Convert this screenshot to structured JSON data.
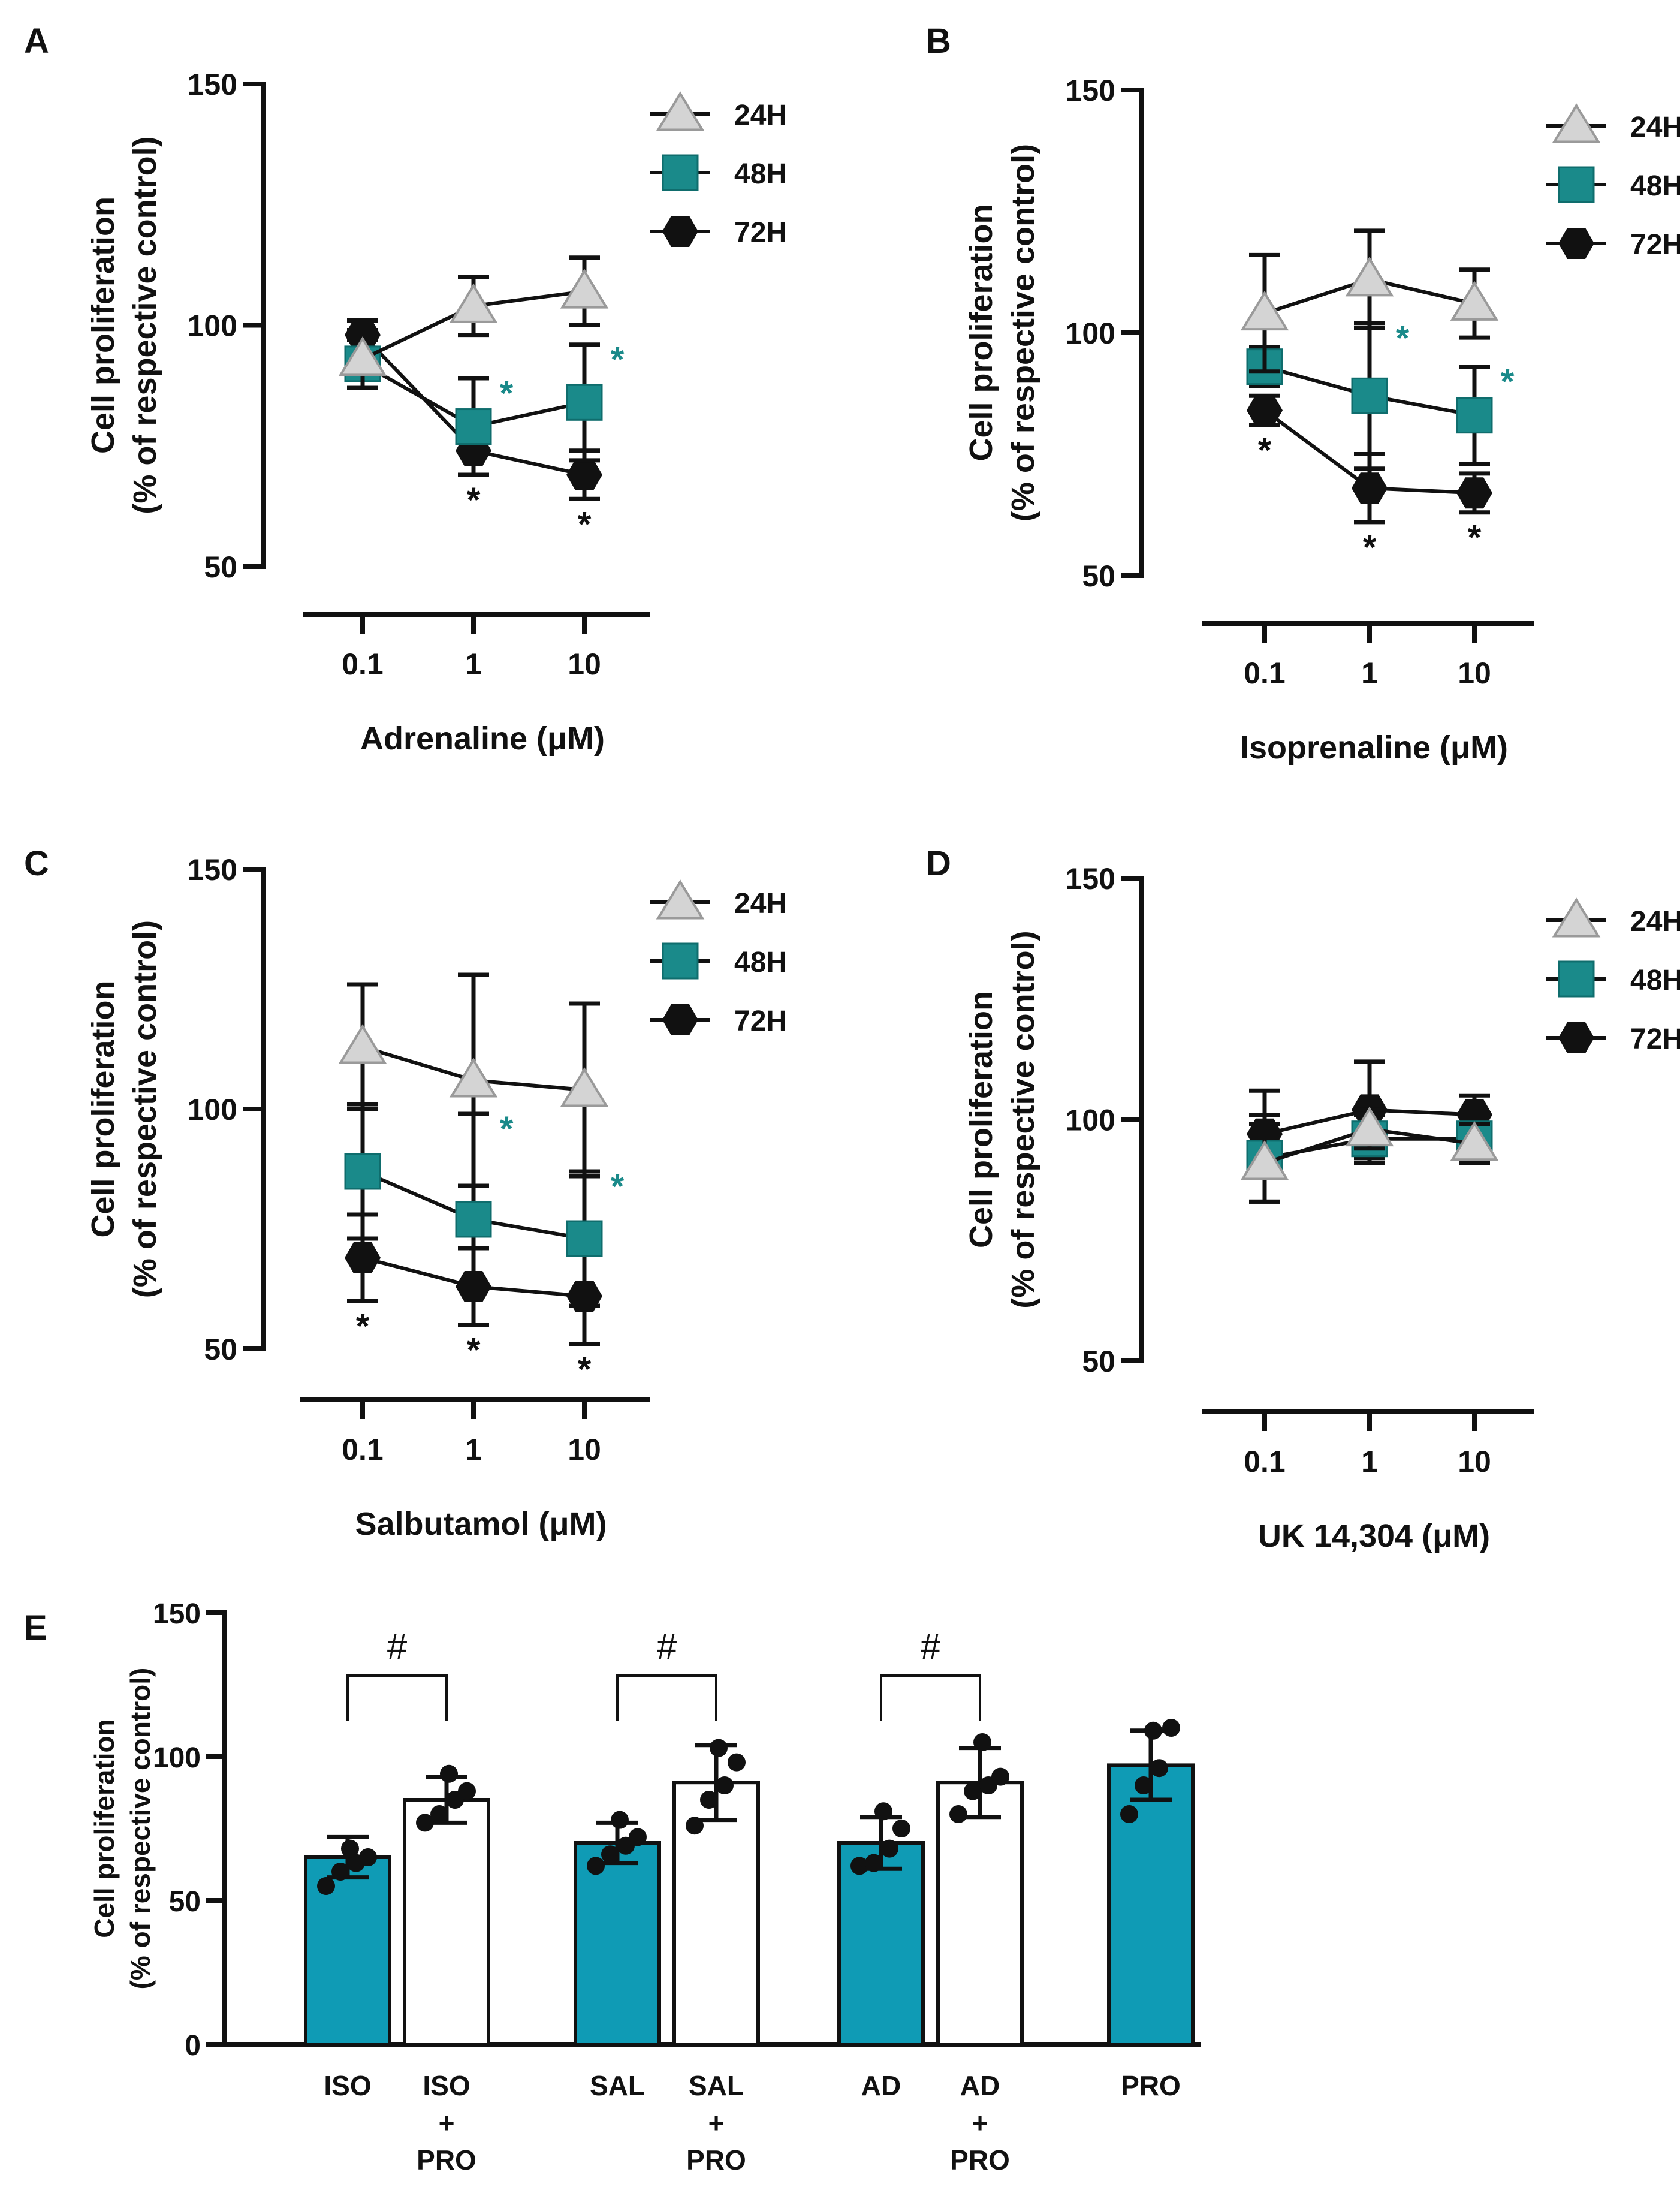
{
  "figure": {
    "legend_labels": [
      "24H",
      "48H",
      "72H"
    ],
    "colors": {
      "h24_fill": "#d4d4d4",
      "h24_stroke": "#9a9a9a",
      "h48": "#1a8a8a",
      "h72": "#111111",
      "bar_fill": "#0f9bb5",
      "axis": "#111111"
    }
  },
  "chart_data": [
    {
      "panel": "A",
      "type": "line",
      "xlabel": "Adrenaline (μM)",
      "ylabel_line1": "Cell proliferation",
      "ylabel_line2": "(% of respective control)",
      "ylim": [
        50,
        150
      ],
      "yticks": [
        "50",
        "100",
        "150"
      ],
      "categories": [
        "0.1",
        "1",
        "10"
      ],
      "series": [
        {
          "name": "24H",
          "values": [
            93,
            104,
            107
          ],
          "err": [
            6,
            6,
            7
          ],
          "stars": [
            "",
            "",
            ""
          ]
        },
        {
          "name": "48H",
          "values": [
            92,
            79,
            84
          ],
          "err": [
            5,
            10,
            12
          ],
          "stars": [
            "",
            "*",
            "*"
          ]
        },
        {
          "name": "72H",
          "values": [
            98,
            74,
            69
          ],
          "err": [
            3,
            5,
            5
          ],
          "stars": [
            "",
            "*",
            "*"
          ]
        }
      ]
    },
    {
      "panel": "B",
      "type": "line",
      "xlabel": "Isoprenaline (μM)",
      "ylabel_line1": "Cell proliferation",
      "ylabel_line2": "(% of respective control)",
      "ylim": [
        50,
        150
      ],
      "yticks": [
        "50",
        "100",
        "150"
      ],
      "categories": [
        "0.1",
        "1",
        "10"
      ],
      "series": [
        {
          "name": "24H",
          "values": [
            104,
            111,
            106
          ],
          "err": [
            12,
            10,
            7
          ],
          "stars": [
            "",
            "",
            ""
          ]
        },
        {
          "name": "48H",
          "values": [
            93,
            87,
            83
          ],
          "err": [
            4,
            15,
            10
          ],
          "stars": [
            "",
            "*",
            "*"
          ]
        },
        {
          "name": "72H",
          "values": [
            84,
            68,
            67
          ],
          "err": [
            3,
            7,
            4
          ],
          "stars": [
            "*",
            "*",
            "*"
          ]
        }
      ]
    },
    {
      "panel": "C",
      "type": "line",
      "xlabel": "Salbutamol (μM)",
      "ylabel_line1": "Cell proliferation",
      "ylabel_line2": "(% of respective control)",
      "ylim": [
        50,
        150
      ],
      "yticks": [
        "50",
        "100",
        "150"
      ],
      "categories": [
        "0.1",
        "1",
        "10"
      ],
      "series": [
        {
          "name": "24H",
          "values": [
            113,
            106,
            104
          ],
          "err": [
            13,
            22,
            18
          ],
          "stars": [
            "",
            "",
            ""
          ]
        },
        {
          "name": "48H",
          "values": [
            87,
            77,
            73
          ],
          "err": [
            14,
            22,
            14
          ],
          "stars": [
            "",
            "*",
            "*"
          ]
        },
        {
          "name": "72H",
          "values": [
            69,
            63,
            61
          ],
          "err": [
            9,
            8,
            10
          ],
          "stars": [
            "*",
            "*",
            "*"
          ]
        }
      ]
    },
    {
      "panel": "D",
      "type": "line",
      "xlabel": "UK 14,304 (μM)",
      "ylabel_line1": "Cell proliferation",
      "ylabel_line2": "(% of respective control)",
      "ylim": [
        50,
        150
      ],
      "yticks": [
        "50",
        "100",
        "150"
      ],
      "categories": [
        "0.1",
        "1",
        "10"
      ],
      "series": [
        {
          "name": "24H",
          "values": [
            91,
            98,
            95
          ],
          "err": [
            8,
            4,
            4
          ],
          "stars": [
            "",
            "",
            ""
          ]
        },
        {
          "name": "48H",
          "values": [
            92,
            96,
            96
          ],
          "err": [
            9,
            5,
            5
          ],
          "stars": [
            "",
            "",
            ""
          ]
        },
        {
          "name": "72H",
          "values": [
            97,
            102,
            101
          ],
          "err": [
            9,
            10,
            4
          ],
          "stars": [
            "",
            "",
            ""
          ]
        }
      ]
    },
    {
      "panel": "E",
      "type": "bar",
      "ylabel_line1": "Cell proliferation",
      "ylabel_line2": "(% of respective control)",
      "ylim": [
        0,
        150
      ],
      "yticks": [
        "0",
        "50",
        "100",
        "150"
      ],
      "bars": [
        {
          "label": [
            "ISO"
          ],
          "value": 65,
          "err": 7,
          "fill": "color",
          "points": [
            55,
            60,
            63,
            65,
            68
          ]
        },
        {
          "label": [
            "ISO",
            "+",
            "PRO"
          ],
          "value": 85,
          "err": 8,
          "fill": "white",
          "points": [
            77,
            80,
            85,
            88,
            94
          ]
        },
        {
          "label": [
            "SAL"
          ],
          "value": 70,
          "err": 7,
          "fill": "color",
          "points": [
            62,
            66,
            69,
            72,
            78
          ]
        },
        {
          "label": [
            "SAL",
            "+",
            "PRO"
          ],
          "value": 91,
          "err": 13,
          "fill": "white",
          "points": [
            76,
            85,
            90,
            98,
            103
          ]
        },
        {
          "label": [
            "AD"
          ],
          "value": 70,
          "err": 9,
          "fill": "color",
          "points": [
            62,
            63,
            68,
            75,
            81
          ]
        },
        {
          "label": [
            "AD",
            "+",
            "PRO"
          ],
          "value": 91,
          "err": 12,
          "fill": "white",
          "points": [
            80,
            88,
            90,
            93,
            105
          ]
        },
        {
          "label": [
            "PRO"
          ],
          "value": 97,
          "err": 12,
          "fill": "color",
          "points": [
            80,
            90,
            96,
            110,
            109
          ]
        }
      ],
      "comparisons": [
        {
          "from": 0,
          "to": 1,
          "label": "#"
        },
        {
          "from": 2,
          "to": 3,
          "label": "#"
        },
        {
          "from": 4,
          "to": 5,
          "label": "#"
        }
      ]
    }
  ]
}
